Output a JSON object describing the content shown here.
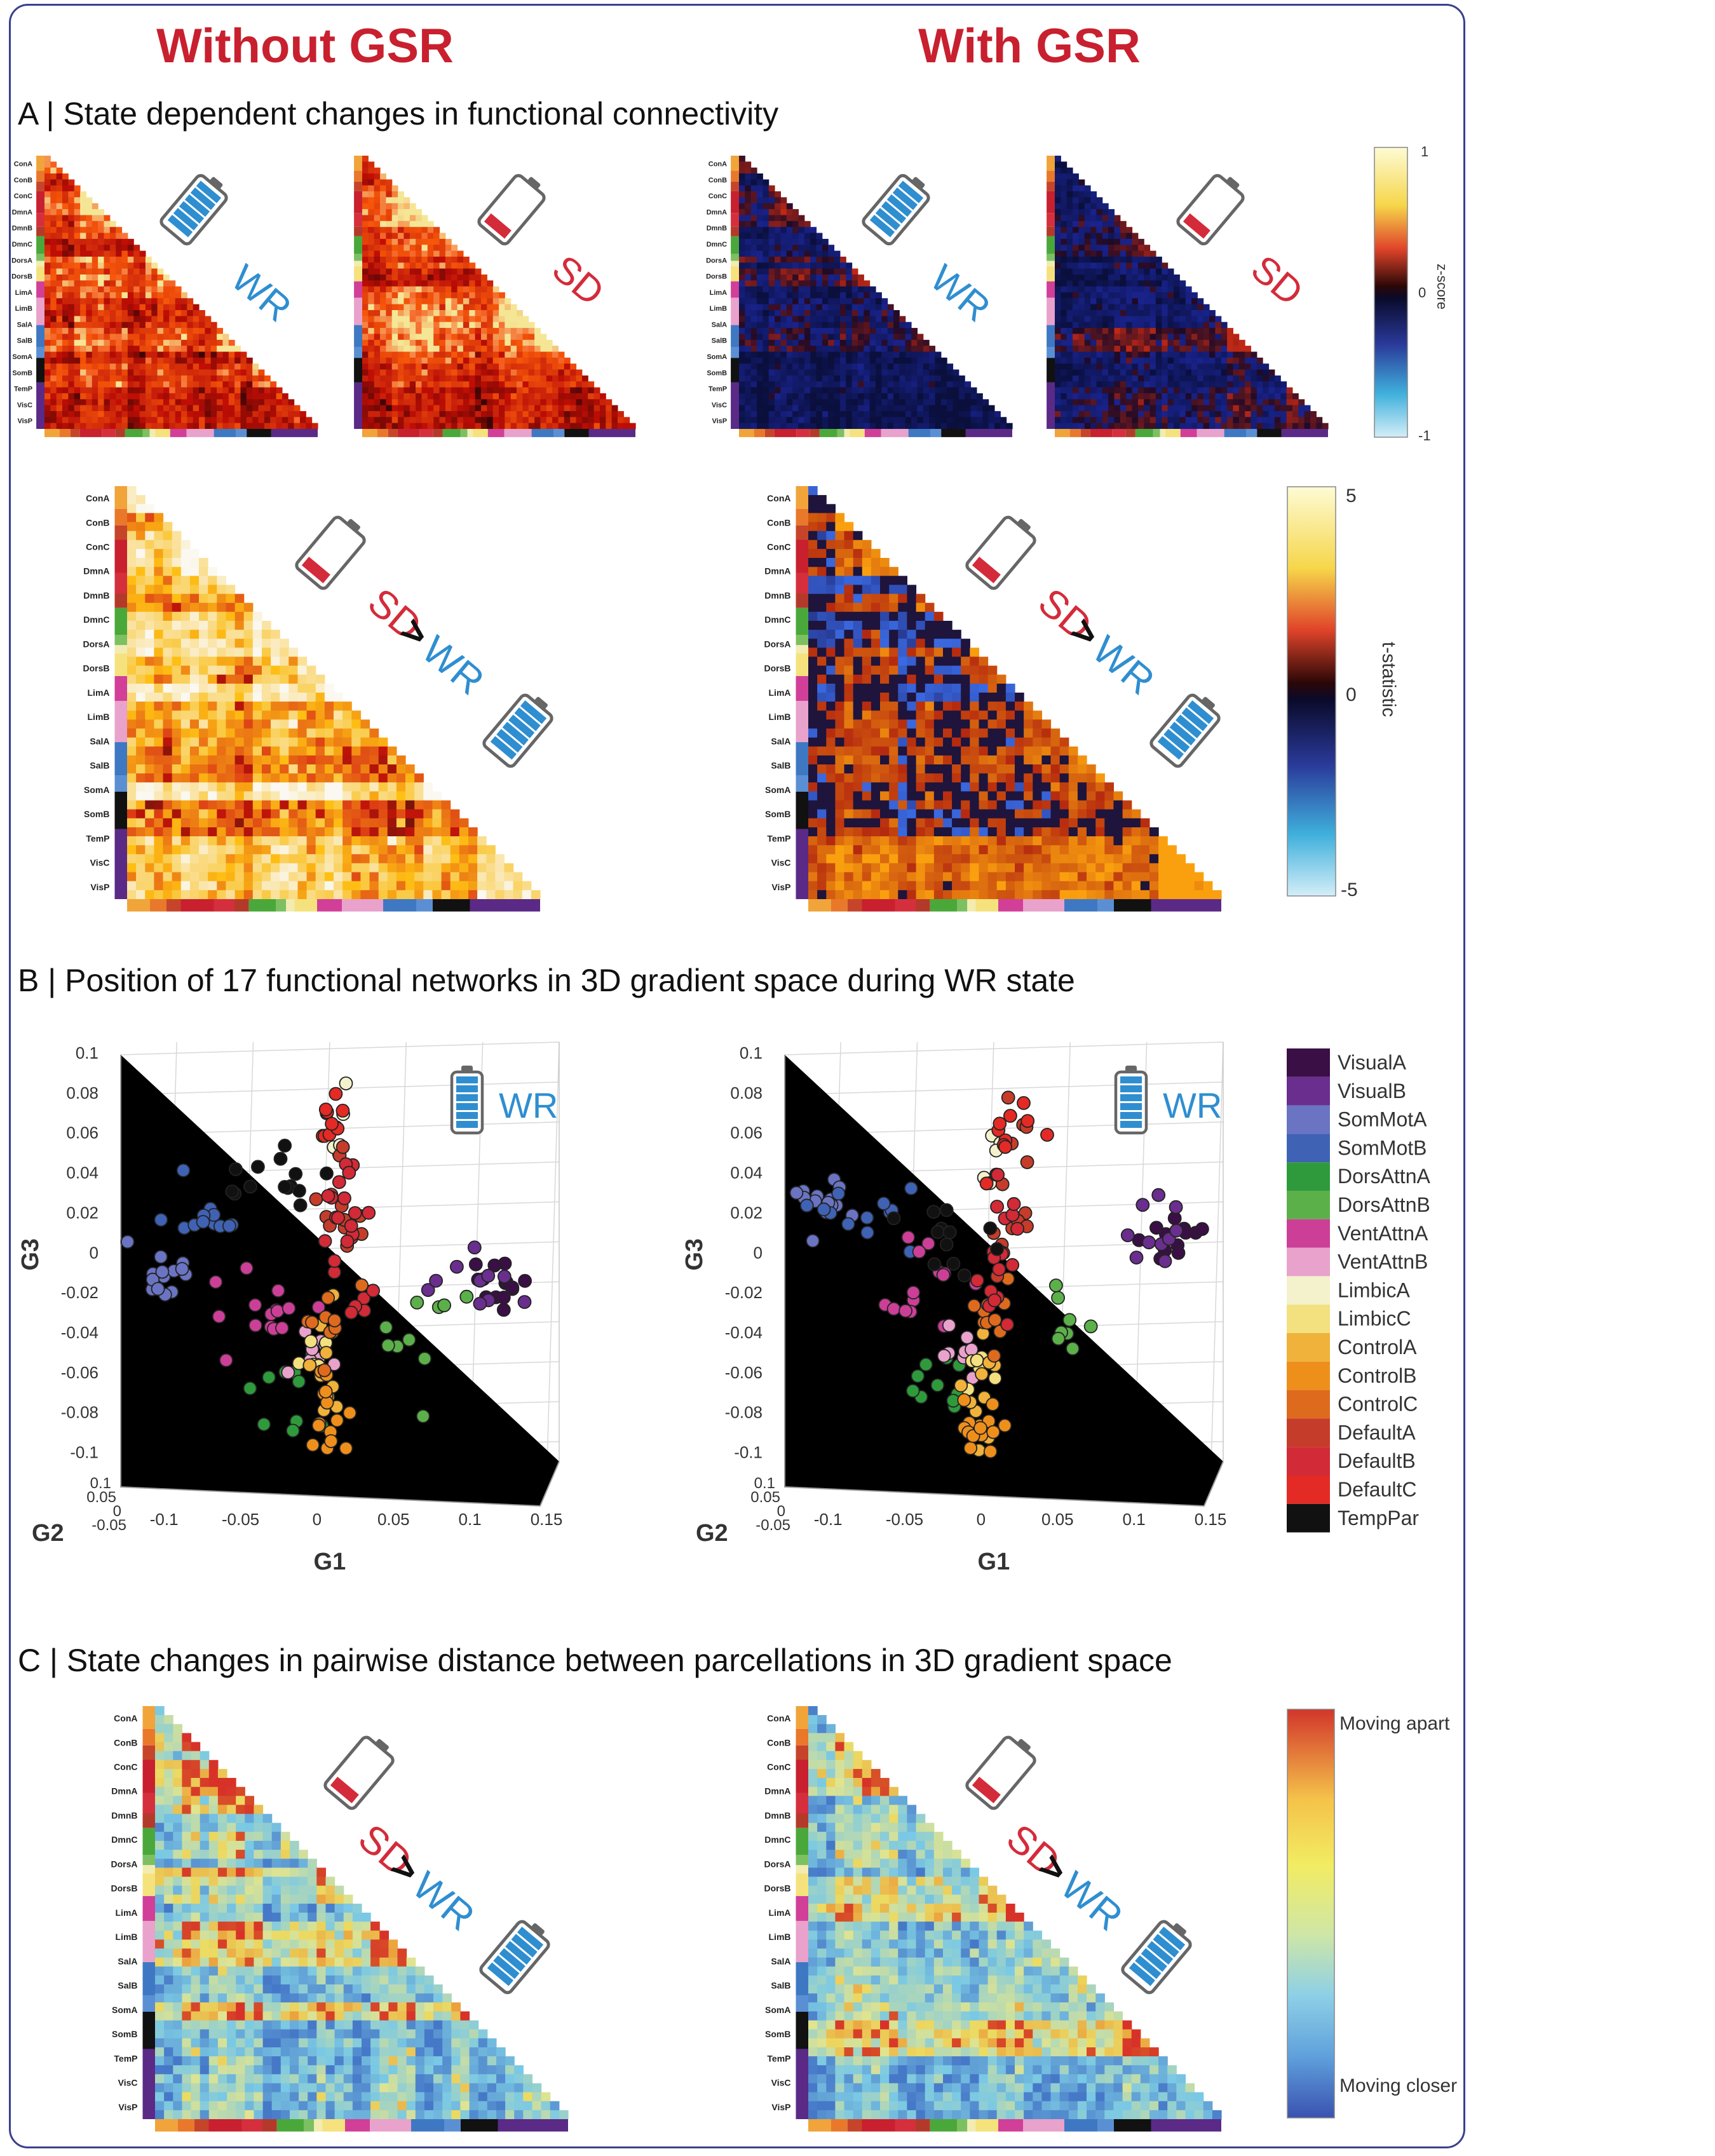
{
  "header": {
    "left_title": "Without GSR",
    "right_title": "With GSR",
    "title_color": "#c8202f"
  },
  "panels": {
    "a_title": "A | State dependent changes in functional connectivity",
    "b_title": "B | Position of 17 functional networks in 3D gradient space during WR state",
    "c_title": "C | State changes in pairwise distance between parcellations in 3D gradient space"
  },
  "state_labels": {
    "wr": "WR",
    "sd": "SD",
    "gt": ">",
    "wr_color": "#2f8ed0",
    "sd_color": "#d42b3a"
  },
  "networks_short": [
    "ConA",
    "ConB",
    "ConC",
    "DmnA",
    "DmnB",
    "DmnC",
    "DorsA",
    "DorsB",
    "LimA",
    "LimB",
    "SalA",
    "SalB",
    "SomA",
    "SomB",
    "TemP",
    "VisC",
    "VisP"
  ],
  "colorbars": {
    "zscore": {
      "label": "z-score",
      "top": "1",
      "mid": "0",
      "bottom": "-1"
    },
    "tstat": {
      "label": "t-statistic",
      "top": "5",
      "mid": "0",
      "bottom": "-5"
    },
    "distance": {
      "top": "Moving apart",
      "bottom": "Moving closer"
    }
  },
  "scatter": {
    "z_ticks": [
      "0.1",
      "0.08",
      "0.06",
      "0.04",
      "0.02",
      "0",
      "-0.02",
      "-0.04",
      "-0.06",
      "-0.08",
      "-0.1"
    ],
    "x_ticks": [
      "-0.1",
      "-0.05",
      "0",
      "0.05",
      "0.1",
      "0.15"
    ],
    "y_ticks": [
      "0.1",
      "0.05",
      "0",
      "-0.05"
    ],
    "xlabel": "G1",
    "ylabel": "G2",
    "zlabel": "G3"
  },
  "legend": {
    "entries": [
      "VisualA",
      "VisualB",
      "SomMotA",
      "SomMotB",
      "DorsAttnA",
      "DorsAttnB",
      "VentAttnA",
      "VentAttnB",
      "LimbicA",
      "LimbicC",
      "ControlA",
      "ControlB",
      "ControlC",
      "DefaultA",
      "DefaultB",
      "DefaultC",
      "TempPar"
    ],
    "colors": [
      "#3a0f45",
      "#6a2e8e",
      "#6a74c2",
      "#3f62b4",
      "#2f9a3c",
      "#5cb04a",
      "#cc3f97",
      "#e8a2cb",
      "#f3f2cc",
      "#f3e07e",
      "#f0b23a",
      "#ee8f1c",
      "#de6a1e",
      "#c63c2a",
      "#d22a36",
      "#e32a24",
      "#111111"
    ]
  },
  "chart_data": [
    {
      "type": "scatter",
      "title": "Without GSR — WR",
      "xlabel": "G1",
      "ylabel": "G2",
      "zlabel": "G3",
      "xlim": [
        -0.12,
        0.15
      ],
      "ylim": [
        -0.05,
        0.1
      ],
      "zlim": [
        -0.11,
        0.1
      ],
      "clusters": [
        {
          "name": "VisualA",
          "center": [
            0.11,
            -0.02
          ],
          "spread": [
            0.015,
            0.01
          ],
          "n": 14
        },
        {
          "name": "VisualB",
          "center": [
            0.1,
            -0.015
          ],
          "spread": [
            0.02,
            0.012
          ],
          "n": 10
        },
        {
          "name": "SomMotA",
          "center": [
            -0.11,
            -0.015
          ],
          "spread": [
            0.015,
            0.01
          ],
          "n": 14
        },
        {
          "name": "SomMotB",
          "center": [
            -0.08,
            0.012
          ],
          "spread": [
            0.02,
            0.012
          ],
          "n": 12
        },
        {
          "name": "DorsAttnA",
          "center": [
            -0.03,
            -0.075
          ],
          "spread": [
            0.02,
            0.015
          ],
          "n": 10
        },
        {
          "name": "DorsAttnB",
          "center": [
            0.06,
            -0.04
          ],
          "spread": [
            0.02,
            0.02
          ],
          "n": 10
        },
        {
          "name": "VentAttnA",
          "center": [
            -0.04,
            -0.035
          ],
          "spread": [
            0.03,
            0.02
          ],
          "n": 16
        },
        {
          "name": "VentAttnB",
          "center": [
            -0.01,
            -0.055
          ],
          "spread": [
            0.015,
            0.01
          ],
          "n": 8
        },
        {
          "name": "LimbicA",
          "center": [
            0.005,
            0.055
          ],
          "spread": [
            0.006,
            0.02
          ],
          "n": 6
        },
        {
          "name": "LimbicC",
          "center": [
            -0.005,
            -0.055
          ],
          "spread": [
            0.01,
            0.01
          ],
          "n": 6
        },
        {
          "name": "ControlA",
          "center": [
            0.0,
            -0.065
          ],
          "spread": [
            0.01,
            0.02
          ],
          "n": 10
        },
        {
          "name": "ControlB",
          "center": [
            0.0,
            -0.09
          ],
          "spread": [
            0.015,
            0.015
          ],
          "n": 14
        },
        {
          "name": "ControlC",
          "center": [
            0.0,
            -0.04
          ],
          "spread": [
            0.012,
            0.015
          ],
          "n": 10
        },
        {
          "name": "DefaultA",
          "center": [
            0.01,
            0.02
          ],
          "spread": [
            0.01,
            0.03
          ],
          "n": 14
        },
        {
          "name": "DefaultB",
          "center": [
            0.01,
            0.0
          ],
          "spread": [
            0.012,
            0.035
          ],
          "n": 22
        },
        {
          "name": "DefaultC",
          "center": [
            0.0,
            0.06
          ],
          "spread": [
            0.008,
            0.015
          ],
          "n": 10
        },
        {
          "name": "TempPar",
          "center": [
            -0.03,
            0.03
          ],
          "spread": [
            0.03,
            0.02
          ],
          "n": 14
        }
      ]
    },
    {
      "type": "scatter",
      "title": "With GSR — WR",
      "xlabel": "G1",
      "ylabel": "G2",
      "zlabel": "G3",
      "xlim": [
        -0.12,
        0.15
      ],
      "ylim": [
        -0.05,
        0.1
      ],
      "zlim": [
        -0.11,
        0.1
      ],
      "clusters": [
        {
          "name": "VisualA",
          "center": [
            0.12,
            0.0
          ],
          "spread": [
            0.015,
            0.008
          ],
          "n": 12
        },
        {
          "name": "VisualB",
          "center": [
            0.11,
            0.005
          ],
          "spread": [
            0.018,
            0.01
          ],
          "n": 10
        },
        {
          "name": "SomMotA",
          "center": [
            -0.11,
            0.02
          ],
          "spread": [
            0.015,
            0.01
          ],
          "n": 14
        },
        {
          "name": "SomMotB",
          "center": [
            -0.08,
            0.012
          ],
          "spread": [
            0.02,
            0.01
          ],
          "n": 12
        },
        {
          "name": "DorsAttnA",
          "center": [
            -0.04,
            -0.07
          ],
          "spread": [
            0.015,
            0.015
          ],
          "n": 10
        },
        {
          "name": "DorsAttnB",
          "center": [
            0.05,
            -0.035
          ],
          "spread": [
            0.015,
            0.015
          ],
          "n": 8
        },
        {
          "name": "VentAttnA",
          "center": [
            -0.05,
            -0.02
          ],
          "spread": [
            0.02,
            0.02
          ],
          "n": 14
        },
        {
          "name": "VentAttnB",
          "center": [
            -0.02,
            -0.055
          ],
          "spread": [
            0.012,
            0.01
          ],
          "n": 8
        },
        {
          "name": "LimbicA",
          "center": [
            0.0,
            0.04
          ],
          "spread": [
            0.006,
            0.015
          ],
          "n": 6
        },
        {
          "name": "LimbicC",
          "center": [
            -0.01,
            -0.06
          ],
          "spread": [
            0.01,
            0.01
          ],
          "n": 6
        },
        {
          "name": "ControlA",
          "center": [
            -0.01,
            -0.07
          ],
          "spread": [
            0.01,
            0.02
          ],
          "n": 10
        },
        {
          "name": "ControlB",
          "center": [
            -0.01,
            -0.095
          ],
          "spread": [
            0.012,
            0.012
          ],
          "n": 14
        },
        {
          "name": "ControlC",
          "center": [
            0.0,
            -0.04
          ],
          "spread": [
            0.01,
            0.015
          ],
          "n": 10
        },
        {
          "name": "DefaultA",
          "center": [
            0.01,
            0.02
          ],
          "spread": [
            0.01,
            0.03
          ],
          "n": 14
        },
        {
          "name": "DefaultB",
          "center": [
            0.005,
            -0.01
          ],
          "spread": [
            0.01,
            0.03
          ],
          "n": 20
        },
        {
          "name": "DefaultC",
          "center": [
            0.01,
            0.05
          ],
          "spread": [
            0.01,
            0.015
          ],
          "n": 10
        },
        {
          "name": "TempPar",
          "center": [
            -0.03,
            0.005
          ],
          "spread": [
            0.02,
            0.015
          ],
          "n": 12
        }
      ]
    }
  ]
}
